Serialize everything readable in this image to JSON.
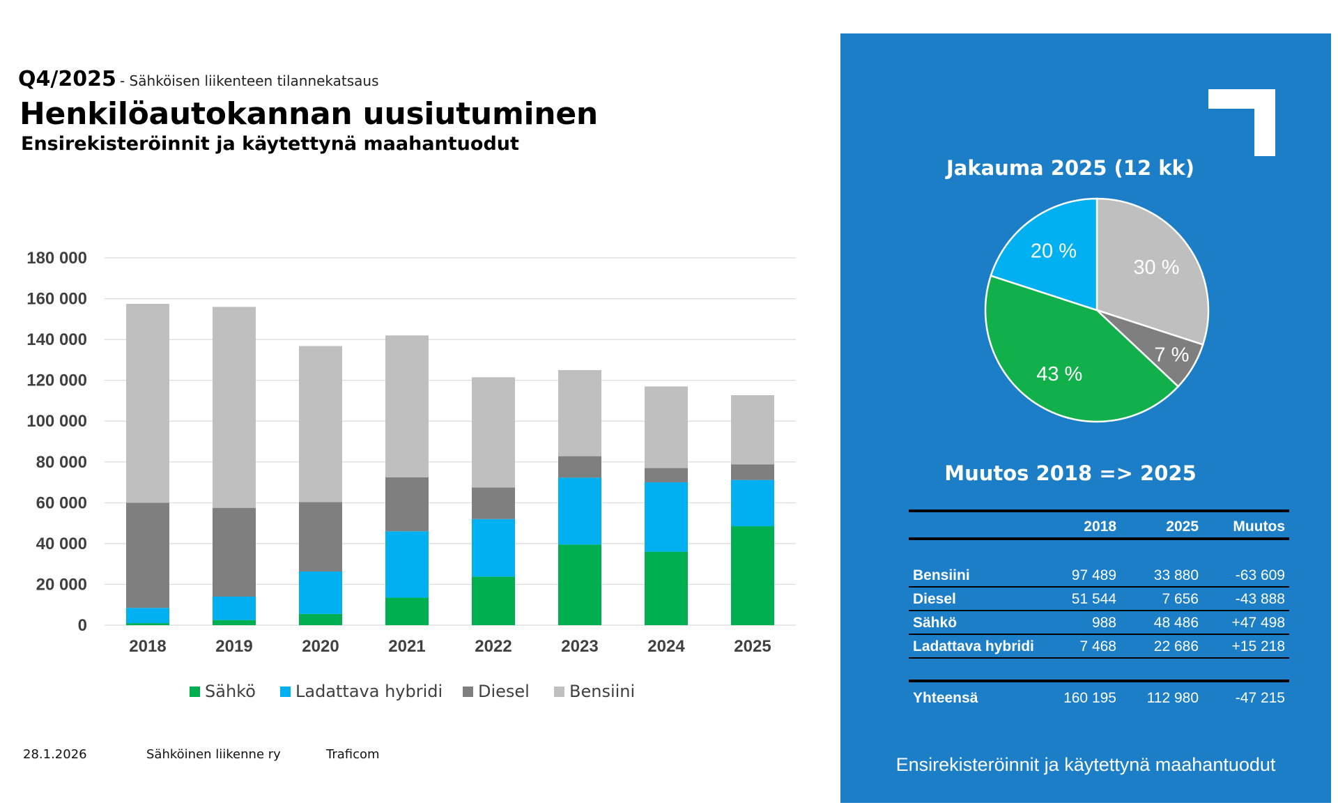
{
  "header": {
    "period": "Q4/2025",
    "subtitle_line": "- Sähköisen liikenteen tilannekatsaus",
    "title": "Henkilöautokannan uusiutuminen",
    "subtitle": "Ensirekisteröinnit ja käytettynä maahantuodut"
  },
  "footer": {
    "date": "28.1.2026",
    "org": "Sähköinen liikenne ry",
    "source": "Traficom"
  },
  "colors": {
    "sahko": "#00b050",
    "hybridi": "#00b0f0",
    "diesel": "#7f7f7f",
    "bensiini": "#bfbfbf",
    "panel": "#1b7ec6"
  },
  "chart_data": [
    {
      "type": "bar",
      "stacked": true,
      "categories": [
        "2018",
        "2019",
        "2020",
        "2021",
        "2022",
        "2023",
        "2024",
        "2025"
      ],
      "series": [
        {
          "name": "Sähkö",
          "color": "#00b050",
          "values": [
            988,
            2500,
            5500,
            13500,
            23800,
            39500,
            36000,
            48486
          ]
        },
        {
          "name": "Ladattava hybridi",
          "color": "#00b0f0",
          "values": [
            7468,
            11500,
            20800,
            32500,
            28200,
            32800,
            34000,
            22686
          ]
        },
        {
          "name": "Diesel",
          "color": "#7f7f7f",
          "values": [
            51544,
            43500,
            34000,
            26500,
            15500,
            10500,
            7000,
            7656
          ]
        },
        {
          "name": "Bensiini",
          "color": "#bfbfbf",
          "values": [
            97489,
            98500,
            76500,
            69500,
            54000,
            42200,
            40000,
            33880
          ]
        }
      ],
      "ylim": [
        0,
        180000
      ],
      "yticks": [
        0,
        20000,
        40000,
        60000,
        80000,
        100000,
        120000,
        140000,
        160000,
        180000
      ],
      "ytick_labels": [
        "0",
        "20 000",
        "40 000",
        "60 000",
        "80 000",
        "100 000",
        "120 000",
        "140 000",
        "160 000",
        "180 000"
      ],
      "legend": "bottom",
      "grid": true
    },
    {
      "type": "pie",
      "title": "Jakauma 2025 (12 kk)",
      "slices": [
        {
          "name": "Bensiini",
          "value": 30,
          "label": "30 %",
          "color": "#bfbfbf"
        },
        {
          "name": "Diesel",
          "value": 7,
          "label": "7 %",
          "color": "#7f7f7f"
        },
        {
          "name": "Sähkö",
          "value": 43,
          "label": "43 %",
          "color": "#12b04b"
        },
        {
          "name": "Ladattava hybridi",
          "value": 20,
          "label": "20 %",
          "color": "#00b0f0"
        }
      ]
    },
    {
      "type": "table",
      "title": "Muutos 2018 => 2025",
      "columns": [
        "",
        "2018",
        "2025",
        "Muutos"
      ],
      "rows": [
        [
          "Bensiini",
          "97 489",
          "33 880",
          "-63 609"
        ],
        [
          "Diesel",
          "51 544",
          "7 656",
          "-43 888"
        ],
        [
          "Sähkö",
          "988",
          "48 486",
          "+47 498"
        ],
        [
          "Ladattava hybridi",
          "7 468",
          "22 686",
          "+15 218"
        ]
      ],
      "total": [
        "Yhteensä",
        "160 195",
        "112 980",
        "-47 215"
      ]
    }
  ],
  "panel": {
    "footer": "Ensirekisteröinnit ja käytettynä maahantuodut"
  }
}
